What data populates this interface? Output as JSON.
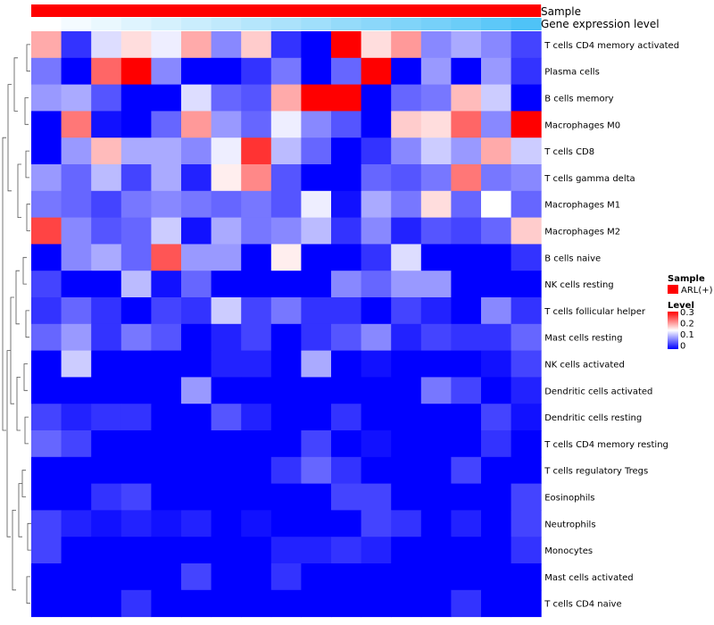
{
  "chart_data": {
    "type": "heatmap",
    "annotations": {
      "top_track_label": "Sample",
      "second_track_label": "Gene expression level",
      "sample_color": "#ff0000",
      "expression_low_color": "#ffffff",
      "expression_high_color": "#4fc3f7"
    },
    "legend": {
      "sample_title": "Sample",
      "sample_entry": "ARL(+)",
      "level_title": "Level",
      "level_ticks": [
        "0.3",
        "0.2",
        "0.1",
        "0"
      ],
      "scale_min": 0,
      "scale_max": 0.3,
      "colors": {
        "low": "#0000ff",
        "mid": "#ffffff",
        "high": "#ff0000"
      }
    },
    "rows": [
      "T cells CD4 memory activated",
      "Plasma cells",
      "B cells memory",
      "Macrophages M0",
      "T cells CD8",
      "T cells gamma delta",
      "Macrophages M1",
      "Macrophages M2",
      "B cells naive",
      "NK cells resting",
      "T cells follicular helper",
      "Mast cells resting",
      "NK cells activated",
      "Dendritic cells activated",
      "Dendritic cells resting",
      "T cells CD4 memory resting",
      "T cells regulatory  Tregs",
      "Eosinophils",
      "Neutrophils",
      "Monocytes",
      "Mast cells activated",
      "T cells CD4 naive"
    ],
    "values": [
      [
        0.2,
        0.03,
        0.13,
        0.17,
        0.14,
        0.2,
        0.08,
        0.18,
        0.03,
        0.0,
        0.3,
        0.17,
        0.21,
        0.08,
        0.1,
        0.08,
        0.04
      ],
      [
        0.07,
        0.0,
        0.24,
        0.3,
        0.08,
        0.0,
        0.0,
        0.03,
        0.07,
        0.0,
        0.06,
        0.3,
        0.0,
        0.09,
        0.0,
        0.09,
        0.03
      ],
      [
        0.09,
        0.1,
        0.05,
        0.0,
        0.0,
        0.13,
        0.06,
        0.05,
        0.2,
        0.3,
        0.3,
        0.0,
        0.06,
        0.07,
        0.19,
        0.12,
        0.0
      ],
      [
        0.0,
        0.23,
        0.01,
        0.0,
        0.06,
        0.21,
        0.09,
        0.06,
        0.14,
        0.08,
        0.05,
        0.0,
        0.18,
        0.17,
        0.24,
        0.08,
        0.3
      ],
      [
        0.0,
        0.09,
        0.19,
        0.1,
        0.1,
        0.08,
        0.14,
        0.27,
        0.11,
        0.06,
        0.0,
        0.03,
        0.08,
        0.12,
        0.09,
        0.2,
        0.12
      ],
      [
        0.09,
        0.06,
        0.11,
        0.04,
        0.1,
        0.02,
        0.16,
        0.22,
        0.05,
        0.0,
        0.0,
        0.06,
        0.05,
        0.07,
        0.23,
        0.07,
        0.08
      ],
      [
        0.07,
        0.06,
        0.04,
        0.07,
        0.08,
        0.07,
        0.06,
        0.07,
        0.05,
        0.14,
        0.01,
        0.1,
        0.07,
        0.17,
        0.06,
        0.15,
        0.06
      ],
      [
        0.26,
        0.08,
        0.05,
        0.06,
        0.12,
        0.01,
        0.1,
        0.07,
        0.08,
        0.11,
        0.03,
        0.08,
        0.02,
        0.05,
        0.04,
        0.06,
        0.18
      ],
      [
        0.0,
        0.08,
        0.1,
        0.06,
        0.25,
        0.09,
        0.09,
        0.0,
        0.16,
        0.0,
        0.0,
        0.03,
        0.13,
        0.0,
        0.0,
        0.0,
        0.03
      ],
      [
        0.04,
        0.0,
        0.0,
        0.11,
        0.01,
        0.06,
        0.0,
        0.0,
        0.0,
        0.0,
        0.08,
        0.06,
        0.09,
        0.09,
        0.0,
        0.0,
        0.0
      ],
      [
        0.03,
        0.06,
        0.03,
        0.0,
        0.04,
        0.03,
        0.12,
        0.04,
        0.07,
        0.03,
        0.03,
        0.0,
        0.04,
        0.02,
        0.0,
        0.08,
        0.03
      ],
      [
        0.06,
        0.09,
        0.03,
        0.07,
        0.05,
        0.0,
        0.02,
        0.04,
        0.0,
        0.03,
        0.05,
        0.08,
        0.02,
        0.04,
        0.03,
        0.03,
        0.06
      ],
      [
        0.0,
        0.12,
        0.0,
        0.0,
        0.0,
        0.0,
        0.02,
        0.02,
        0.0,
        0.1,
        0.0,
        0.01,
        0.0,
        0.0,
        0.0,
        0.01,
        0.04
      ],
      [
        0.0,
        0.0,
        0.0,
        0.0,
        0.0,
        0.09,
        0.0,
        0.0,
        0.0,
        0.0,
        0.0,
        0.0,
        0.0,
        0.07,
        0.04,
        0.0,
        0.02
      ],
      [
        0.04,
        0.02,
        0.03,
        0.03,
        0.0,
        0.0,
        0.05,
        0.02,
        0.0,
        0.0,
        0.03,
        0.0,
        0.0,
        0.0,
        0.0,
        0.04,
        0.01
      ],
      [
        0.06,
        0.04,
        0.0,
        0.0,
        0.0,
        0.0,
        0.0,
        0.0,
        0.0,
        0.04,
        0.0,
        0.01,
        0.0,
        0.0,
        0.0,
        0.03,
        0.0
      ],
      [
        0.0,
        0.0,
        0.0,
        0.0,
        0.0,
        0.0,
        0.0,
        0.0,
        0.03,
        0.06,
        0.03,
        0.0,
        0.0,
        0.0,
        0.04,
        0.0,
        0.0
      ],
      [
        0.0,
        0.0,
        0.03,
        0.04,
        0.0,
        0.0,
        0.0,
        0.0,
        0.0,
        0.0,
        0.04,
        0.04,
        0.0,
        0.0,
        0.0,
        0.0,
        0.04
      ],
      [
        0.04,
        0.02,
        0.01,
        0.02,
        0.01,
        0.02,
        0.0,
        0.01,
        0.0,
        0.0,
        0.0,
        0.04,
        0.03,
        0.0,
        0.02,
        0.0,
        0.04
      ],
      [
        0.04,
        0.0,
        0.0,
        0.0,
        0.0,
        0.0,
        0.0,
        0.0,
        0.02,
        0.02,
        0.03,
        0.02,
        0.0,
        0.0,
        0.0,
        0.0,
        0.03
      ],
      [
        0.0,
        0.0,
        0.0,
        0.0,
        0.0,
        0.04,
        0.0,
        0.0,
        0.03,
        0.0,
        0.0,
        0.0,
        0.0,
        0.0,
        0.0,
        0.0,
        0.0
      ],
      [
        0.0,
        0.0,
        0.0,
        0.03,
        0.0,
        0.0,
        0.0,
        0.0,
        0.0,
        0.0,
        0.0,
        0.0,
        0.0,
        0.0,
        0.03,
        0.0,
        0.0
      ]
    ],
    "expression_levels": [
      0.0,
      0.06,
      0.12,
      0.18,
      0.24,
      0.3,
      0.36,
      0.42,
      0.48,
      0.54,
      0.6,
      0.66,
      0.72,
      0.78,
      0.84,
      0.92,
      1.0
    ]
  }
}
